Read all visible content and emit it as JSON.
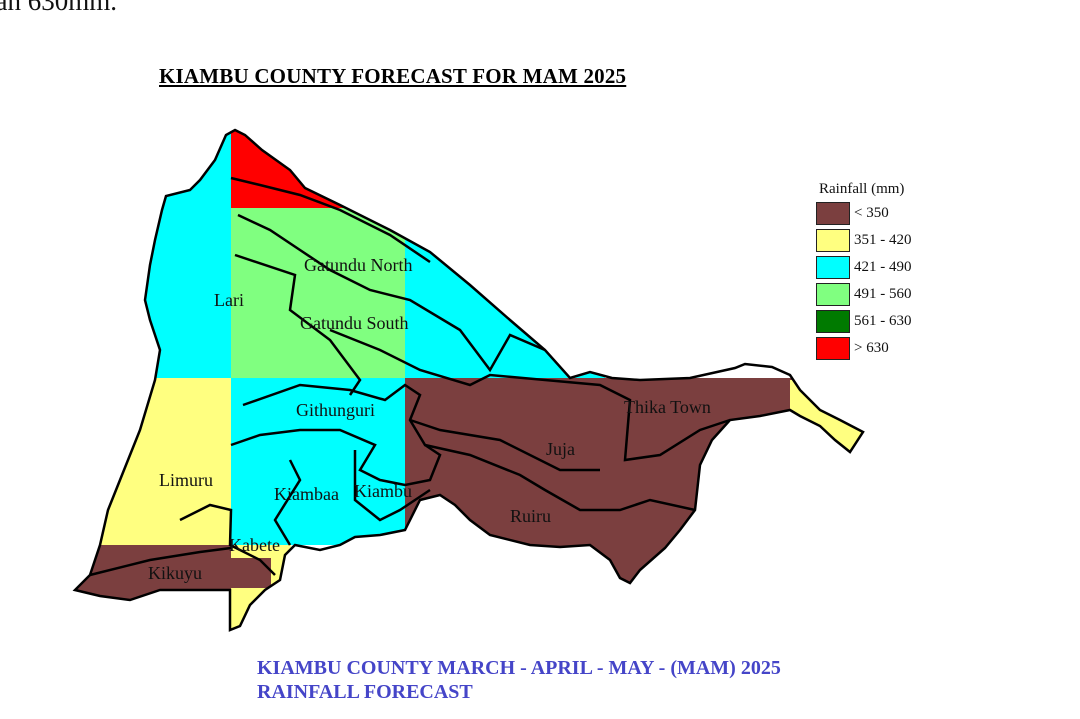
{
  "top_text": "han 630mm.",
  "title": "KIAMBU COUNTY FORECAST FOR MAM 2025",
  "caption_line1": "KIAMBU COUNTY MARCH - APRIL - MAY - (MAM) 2025",
  "caption_line2": "RAINFALL FORECAST",
  "legend": {
    "title": "Rainfall (mm)",
    "items": [
      {
        "label": "< 350",
        "color": "#7b3f3f"
      },
      {
        "label": "351 - 420",
        "color": "#ffff80"
      },
      {
        "label": "421 - 490",
        "color": "#00ffff"
      },
      {
        "label": "491 - 560",
        "color": "#80ff80"
      },
      {
        "label": "561 - 630",
        "color": "#007a00"
      },
      {
        "label": "> 630",
        "color": "#ff0000"
      }
    ]
  },
  "districts": [
    "Gatundu North",
    "Gatundu South",
    "Lari",
    "Githunguri",
    "Thika Town",
    "Juja",
    "Limuru",
    "Kiambaa",
    "Kiambu",
    "Ruiru",
    "Kabete",
    "Kikuyu"
  ]
}
